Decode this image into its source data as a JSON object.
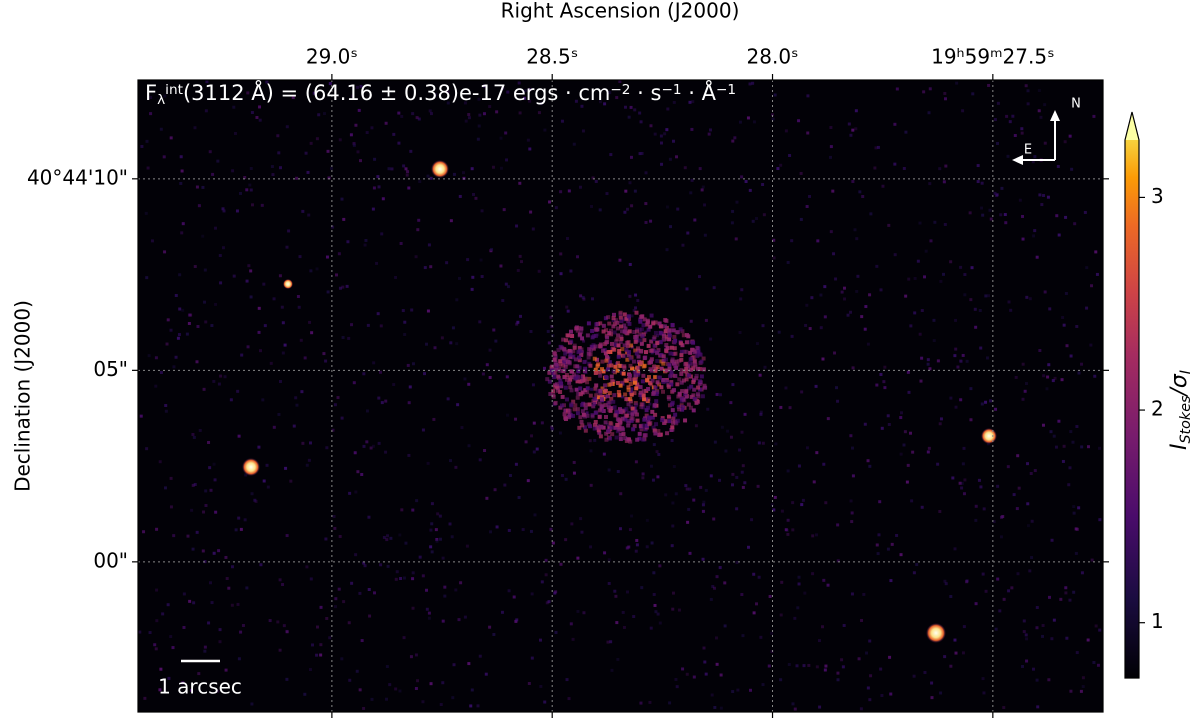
{
  "chart_data": {
    "type": "image",
    "xlabel": "Right Ascension (J2000)",
    "ylabel": "Declination (J2000)",
    "xlim": [
      29.44,
      27.25
    ],
    "xticks": [
      {
        "value": 29.0,
        "label": "29.0ˢ"
      },
      {
        "value": 28.5,
        "label": "28.5ˢ"
      },
      {
        "value": 28.0,
        "label": "28.0ˢ"
      },
      {
        "value": 27.5,
        "label": "19ʰ59ᵐ27.5ˢ"
      }
    ],
    "ylim": [
      -3.92,
      12.58
    ],
    "yticks": [
      {
        "value": 10,
        "label": "40°44'10\""
      },
      {
        "value": 5,
        "label": "05\""
      },
      {
        "value": 0,
        "label": "00\""
      }
    ],
    "grid": true,
    "annotation": {
      "parts": [
        "F",
        "λ",
        "int",
        "(3112 Å) = (64.16 ± 0.38)e-17 ",
        "ergs · cm",
        "−2",
        " · s",
        "−1",
        " · Å",
        "−1"
      ],
      "shift": [
        "base",
        "sub",
        "sup",
        "base",
        "base",
        "sup",
        "base",
        "sup",
        "base",
        "sup"
      ]
    },
    "colorbar": {
      "clim": [
        0.74,
        3.27
      ],
      "ticks": [
        1,
        2,
        3
      ],
      "extend": "max",
      "colormap": "inferno",
      "label": {
        "parts": [
          "I",
          "Stokes",
          "/σ",
          "I"
        ],
        "shift": [
          "base",
          "sub",
          "base",
          "sub"
        ]
      }
    },
    "compass": {
      "north": "N",
      "east": "E"
    },
    "scale_bar": "1 arcsec"
  }
}
